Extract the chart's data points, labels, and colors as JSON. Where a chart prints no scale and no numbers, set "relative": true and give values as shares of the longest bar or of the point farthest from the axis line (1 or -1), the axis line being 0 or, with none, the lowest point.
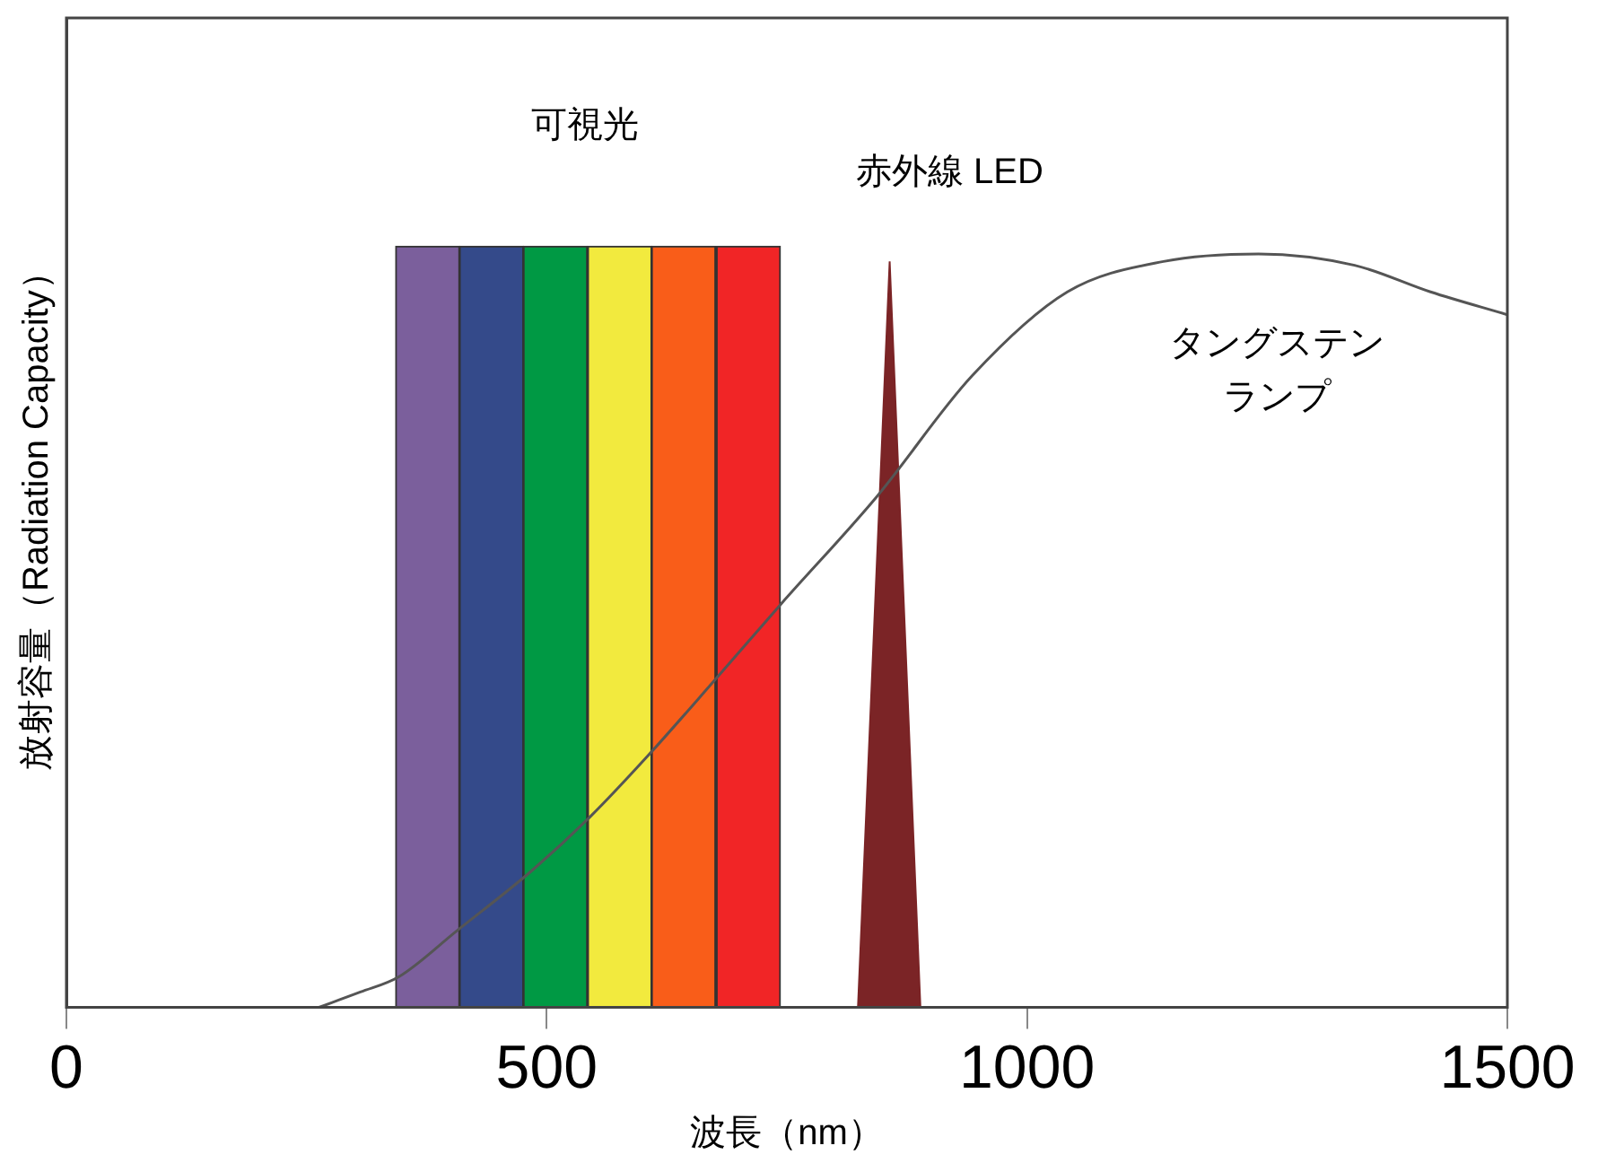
{
  "chart_data": {
    "type": "bar",
    "relative": true,
    "xlabel": "波長（nm）",
    "ylabel": "放射容量（Radiation Capacity）",
    "xlim": [
      0,
      1500
    ],
    "xticks": [
      0,
      500,
      1000,
      1500
    ],
    "grid": false,
    "legend": false,
    "series": [
      {
        "x": [
          376,
          442.5,
          509,
          576,
          642.5,
          710
        ],
        "values": [
          1,
          1,
          1,
          1,
          1,
          1
        ],
        "colors": [
          "#7b5f9c",
          "#344a8a",
          "#009944",
          "#f2ea3e",
          "#f95d19",
          "#f12526"
        ]
      },
      {
        "type": "area",
        "x": [
          824,
          857,
          889
        ],
        "values": [
          0,
          0.98,
          0
        ],
        "color": "#7b2426"
      },
      {
        "type": "line",
        "x": [
          263,
          306,
          346,
          406,
          485,
          545,
          605,
          675,
          744,
          843,
          943,
          1042,
          1142,
          1241,
          1341,
          1420,
          1500
        ],
        "values": [
          0,
          0.02,
          0.04,
          0.1,
          0.18,
          0.25,
          0.33,
          0.43,
          0.53,
          0.67,
          0.83,
          0.94,
          0.98,
          0.99,
          0.975,
          0.94,
          0.91
        ],
        "color": "#555555"
      }
    ],
    "annotations": [
      "可視光",
      "赤外線 LED",
      "タングステンランプ"
    ]
  }
}
